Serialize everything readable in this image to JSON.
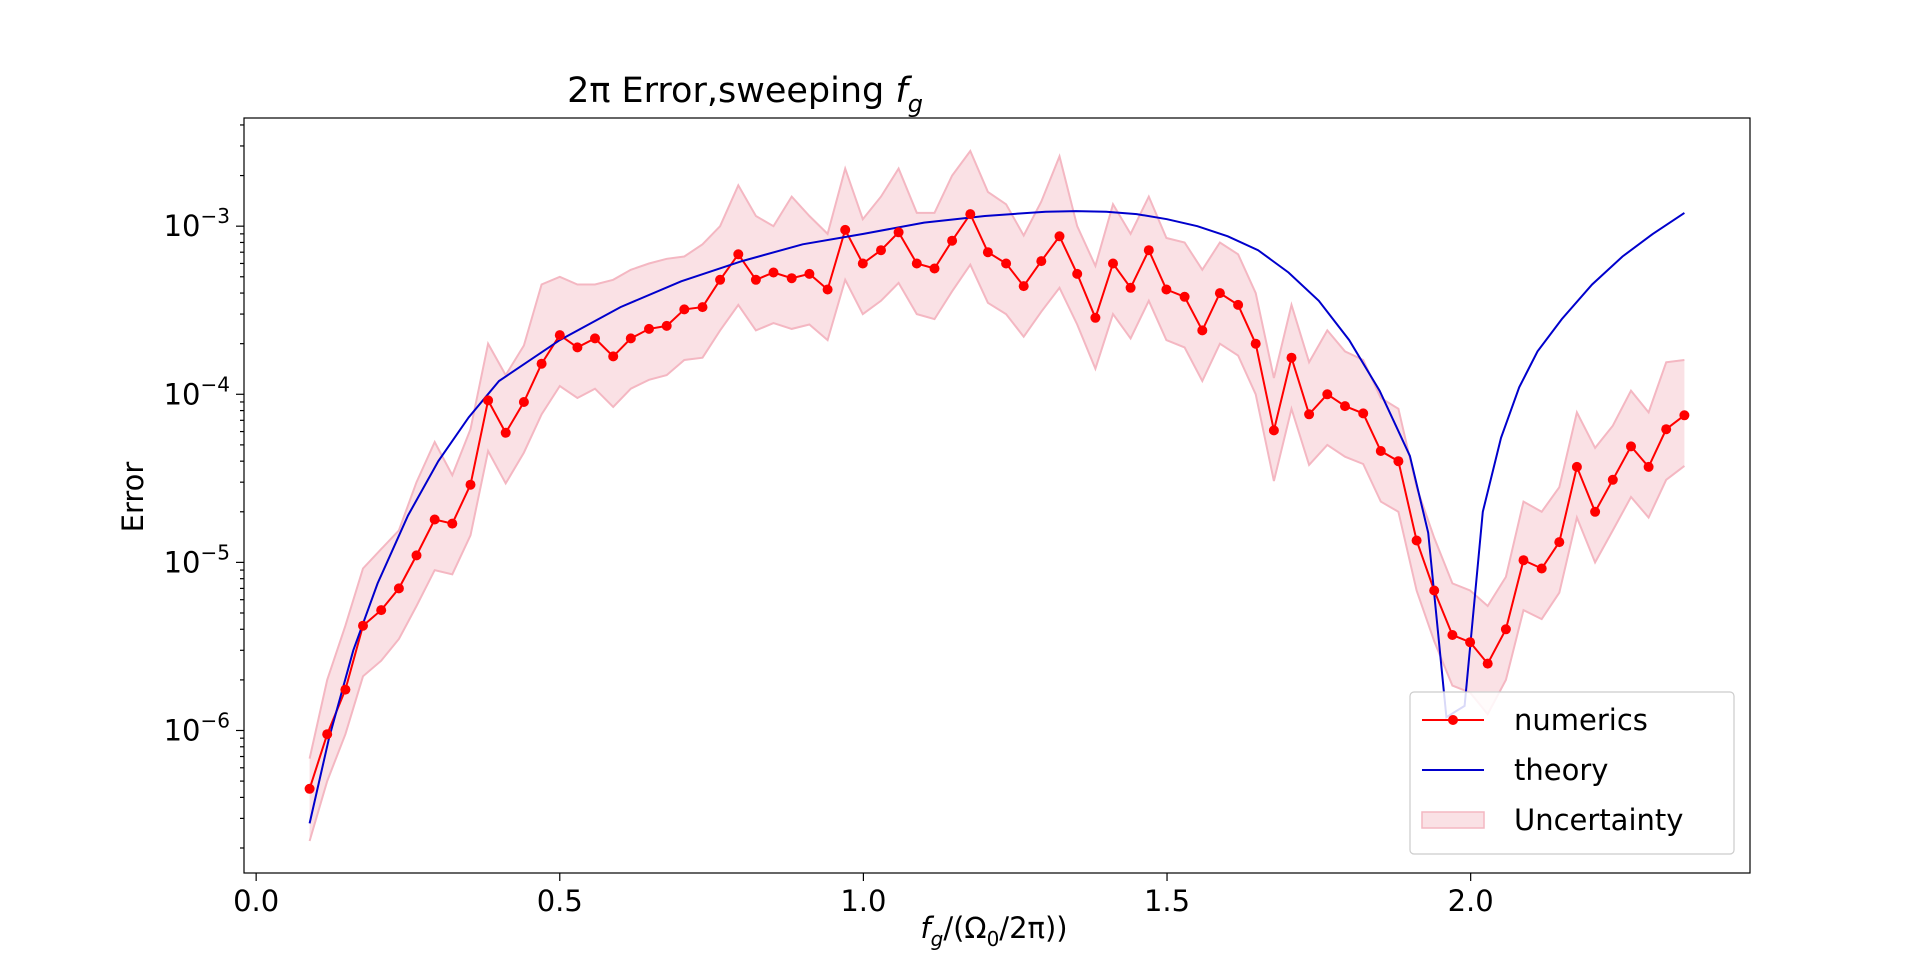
{
  "chart_data": {
    "type": "line",
    "title": "2π Error,sweeping f_g",
    "title_main": "2π Error,sweeping ",
    "title_var": "f",
    "title_sub": "g",
    "xlabel": "f_g/(Ω_0/2π))",
    "xlabel_parts": {
      "var": "f",
      "sub": "g",
      "mid": "/(Ω",
      "sub2": "0",
      "end": "/2π))"
    },
    "ylabel": "Error",
    "xlim": [
      -0.02,
      2.46
    ],
    "ylim": [
      1.42e-07,
      0.0044
    ],
    "yscale": "log",
    "xticks": [
      {
        "value": 0.0,
        "label": "0.0"
      },
      {
        "value": 0.5,
        "label": "0.5"
      },
      {
        "value": 1.0,
        "label": "1.0"
      },
      {
        "value": 1.5,
        "label": "1.5"
      },
      {
        "value": 2.0,
        "label": "2.0"
      }
    ],
    "yticks": [
      {
        "value": 1e-06,
        "mantissa": "10",
        "exp": "−6"
      },
      {
        "value": 1e-05,
        "mantissa": "10",
        "exp": "−5"
      },
      {
        "value": 0.0001,
        "mantissa": "10",
        "exp": "−4"
      },
      {
        "value": 0.001,
        "mantissa": "10",
        "exp": "−3"
      }
    ],
    "grid": false,
    "legend_position": "lower-right",
    "legend": [
      {
        "label": "numerics",
        "color": "#ff0000",
        "style": "line-marker"
      },
      {
        "label": "theory",
        "color": "#0000cc",
        "style": "line"
      },
      {
        "label": "Uncertainty",
        "color": "#f4b7c2",
        "style": "band"
      }
    ],
    "series": [
      {
        "name": "numerics",
        "color": "#ff0000",
        "x": [
          0.088,
          0.117,
          0.147,
          0.176,
          0.206,
          0.235,
          0.264,
          0.294,
          0.323,
          0.353,
          0.382,
          0.411,
          0.441,
          0.47,
          0.5,
          0.529,
          0.558,
          0.588,
          0.617,
          0.647,
          0.676,
          0.705,
          0.735,
          0.764,
          0.794,
          0.823,
          0.852,
          0.882,
          0.911,
          0.941,
          0.97,
          0.999,
          1.029,
          1.058,
          1.088,
          1.117,
          1.146,
          1.176,
          1.205,
          1.235,
          1.264,
          1.293,
          1.323,
          1.352,
          1.382,
          1.411,
          1.44,
          1.47,
          1.499,
          1.529,
          1.558,
          1.587,
          1.617,
          1.646,
          1.676,
          1.705,
          1.734,
          1.764,
          1.793,
          1.823,
          1.852,
          1.881,
          1.911,
          1.94,
          1.97,
          1.999,
          2.028,
          2.058,
          2.087,
          2.117,
          2.146,
          2.175,
          2.205,
          2.234,
          2.264,
          2.293,
          2.322,
          2.352
        ],
        "values": [
          4.5e-07,
          9.5e-07,
          1.75e-06,
          4.2e-06,
          5.2e-06,
          7e-06,
          1.1e-05,
          1.8e-05,
          1.7e-05,
          2.9e-05,
          9.2e-05,
          5.9e-05,
          9e-05,
          0.000152,
          0.000225,
          0.00019,
          0.000215,
          0.000168,
          0.000215,
          0.000245,
          0.000255,
          0.00032,
          0.00033,
          0.00048,
          0.00068,
          0.00048,
          0.00053,
          0.00049,
          0.00052,
          0.00042,
          0.00095,
          0.0006,
          0.00072,
          0.00092,
          0.0006,
          0.00056,
          0.00082,
          0.00118,
          0.0007,
          0.0006,
          0.00044,
          0.00062,
          0.00087,
          0.00052,
          0.000285,
          0.0006,
          0.00043,
          0.00072,
          0.00042,
          0.00038,
          0.00024,
          0.0004,
          0.00034,
          0.0002,
          6.1e-05,
          0.000165,
          7.6e-05,
          0.0001,
          8.5e-05,
          7.7e-05,
          4.6e-05,
          4e-05,
          1.35e-05,
          6.8e-06,
          3.7e-06,
          3.35e-06,
          2.5e-06,
          4e-06,
          1.03e-05,
          9.2e-06,
          1.32e-05,
          3.7e-05,
          2e-05,
          3.1e-05,
          4.9e-05,
          3.7e-05,
          6.2e-05,
          7.5e-05
        ]
      },
      {
        "name": "theory",
        "color": "#0000cc",
        "x": [
          0.088,
          0.12,
          0.16,
          0.2,
          0.25,
          0.3,
          0.35,
          0.4,
          0.5,
          0.6,
          0.7,
          0.8,
          0.9,
          1.0,
          1.1,
          1.2,
          1.3,
          1.35,
          1.4,
          1.45,
          1.5,
          1.55,
          1.6,
          1.65,
          1.7,
          1.75,
          1.8,
          1.85,
          1.9,
          1.93,
          1.96,
          1.99,
          2.02,
          2.05,
          2.08,
          2.11,
          2.15,
          2.2,
          2.25,
          2.3,
          2.352
        ],
        "values": [
          2.8e-07,
          9e-07,
          3e-06,
          7.5e-06,
          1.9e-05,
          4e-05,
          7.3e-05,
          0.00012,
          0.00021,
          0.00033,
          0.00047,
          0.00062,
          0.00078,
          0.0009,
          0.00105,
          0.00115,
          0.00122,
          0.00123,
          0.00122,
          0.00118,
          0.0011,
          0.001,
          0.00087,
          0.00072,
          0.00053,
          0.00036,
          0.00021,
          0.000105,
          4.3e-05,
          1.5e-05,
          1.2e-06,
          1.4e-06,
          2e-05,
          5.5e-05,
          0.00011,
          0.00018,
          0.00028,
          0.00045,
          0.00066,
          0.0009,
          0.0012
        ]
      },
      {
        "name": "Uncertainty",
        "color": "#f4b7c2",
        "x": [
          0.088,
          0.117,
          0.147,
          0.176,
          0.206,
          0.235,
          0.264,
          0.294,
          0.323,
          0.353,
          0.382,
          0.411,
          0.441,
          0.47,
          0.5,
          0.529,
          0.558,
          0.588,
          0.617,
          0.647,
          0.676,
          0.705,
          0.735,
          0.764,
          0.794,
          0.823,
          0.852,
          0.882,
          0.911,
          0.941,
          0.97,
          0.999,
          1.029,
          1.058,
          1.088,
          1.117,
          1.146,
          1.176,
          1.205,
          1.235,
          1.264,
          1.293,
          1.323,
          1.352,
          1.382,
          1.411,
          1.44,
          1.47,
          1.499,
          1.529,
          1.558,
          1.587,
          1.617,
          1.646,
          1.676,
          1.705,
          1.734,
          1.764,
          1.793,
          1.823,
          1.852,
          1.881,
          1.911,
          1.94,
          1.97,
          1.999,
          2.028,
          2.058,
          2.087,
          2.117,
          2.146,
          2.175,
          2.205,
          2.234,
          2.264,
          2.293,
          2.322,
          2.352
        ],
        "upper": [
          6.8e-07,
          2e-06,
          4.2e-06,
          9.2e-06,
          1.2e-05,
          1.55e-05,
          3e-05,
          5.2e-05,
          3.3e-05,
          6.2e-05,
          0.0002,
          0.00013,
          0.000195,
          0.00045,
          0.0005,
          0.00045,
          0.00045,
          0.00048,
          0.00055,
          0.0006,
          0.00064,
          0.00066,
          0.00078,
          0.001,
          0.00175,
          0.00115,
          0.001,
          0.0015,
          0.00115,
          0.0009,
          0.0022,
          0.0011,
          0.0015,
          0.0022,
          0.0012,
          0.0012,
          0.002,
          0.0028,
          0.0016,
          0.00135,
          0.00088,
          0.0014,
          0.0026,
          0.001,
          0.00058,
          0.00135,
          0.0009,
          0.0015,
          0.00085,
          0.0008,
          0.00055,
          0.0008,
          0.00068,
          0.0004,
          0.000125,
          0.00034,
          0.000155,
          0.00024,
          0.00018,
          0.00016,
          9.5e-05,
          8.2e-05,
          2.8e-05,
          1.4e-05,
          7.5e-06,
          6.8e-06,
          5.5e-06,
          8.2e-06,
          2.3e-05,
          2e-05,
          2.8e-05,
          7.8e-05,
          4.8e-05,
          6.5e-05,
          0.000105,
          7.8e-05,
          0.000155,
          0.00016
        ],
        "lower": [
          2.2e-07,
          5e-07,
          9.5e-07,
          2.1e-06,
          2.6e-06,
          3.5e-06,
          5.5e-06,
          9e-06,
          8.5e-06,
          1.45e-05,
          4.6e-05,
          2.95e-05,
          4.5e-05,
          7.6e-05,
          0.000112,
          9.5e-05,
          0.000108,
          8.4e-05,
          0.000108,
          0.000122,
          0.00013,
          0.00016,
          0.000165,
          0.00024,
          0.00034,
          0.00024,
          0.000265,
          0.000245,
          0.00026,
          0.00021,
          0.00048,
          0.0003,
          0.00036,
          0.00046,
          0.0003,
          0.00028,
          0.00041,
          0.00059,
          0.00035,
          0.0003,
          0.00022,
          0.00031,
          0.00043,
          0.00026,
          0.000142,
          0.0003,
          0.000215,
          0.00036,
          0.00021,
          0.00019,
          0.00012,
          0.0002,
          0.00017,
          0.0001,
          3.05e-05,
          8.2e-05,
          3.8e-05,
          5e-05,
          4.25e-05,
          3.85e-05,
          2.3e-05,
          2e-05,
          6.8e-06,
          3.4e-06,
          1.85e-06,
          1.68e-06,
          1.25e-06,
          2e-06,
          5.2e-06,
          4.6e-06,
          6.6e-06,
          1.85e-05,
          1e-05,
          1.55e-05,
          2.45e-05,
          1.85e-05,
          3.1e-05,
          3.75e-05
        ]
      }
    ]
  }
}
